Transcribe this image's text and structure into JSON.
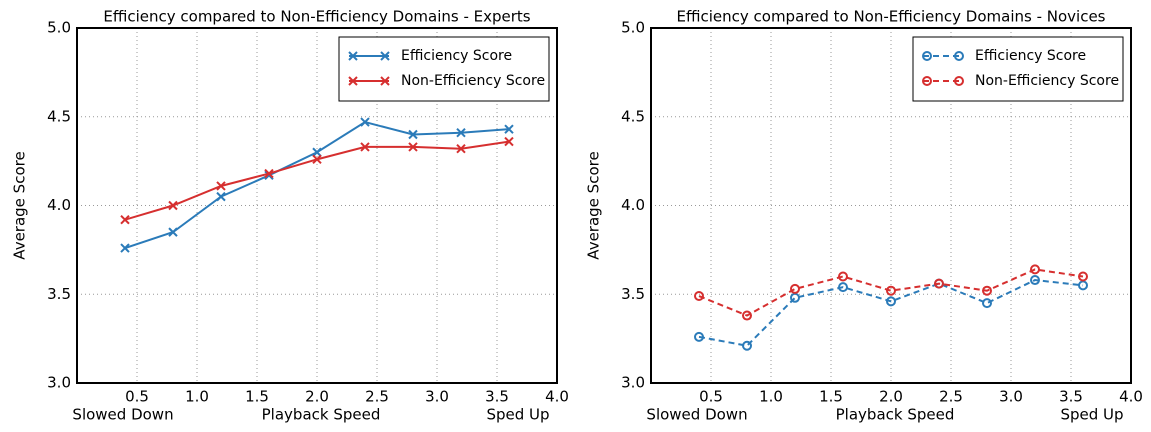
{
  "chart_data": [
    {
      "type": "line",
      "title": "Efficiency compared to Non-Efficiency Domains - Experts",
      "xlabel": "Playback Speed",
      "xlabel_left": "Slowed Down",
      "xlabel_right": "Sped Up",
      "ylabel": "Average Score",
      "x": [
        0.4,
        0.8,
        1.2,
        1.6,
        2.0,
        2.4,
        2.8,
        3.2,
        3.6
      ],
      "series": [
        {
          "name": "Efficiency Score",
          "color": "#2b7bb9",
          "marker": "x",
          "linestyle": "solid",
          "values": [
            3.76,
            3.85,
            4.05,
            4.17,
            4.3,
            4.47,
            4.4,
            4.41,
            4.43
          ]
        },
        {
          "name": "Non-Efficiency Score",
          "color": "#d62f2f",
          "marker": "x",
          "linestyle": "solid",
          "values": [
            3.92,
            4.0,
            4.11,
            4.18,
            4.26,
            4.33,
            4.33,
            4.32,
            4.36
          ]
        }
      ],
      "xlim": [
        0,
        4
      ],
      "xticks": [
        0.5,
        {
          "value": 1,
          "label": "1.0"
        },
        1.5,
        {
          "value": 2,
          "label": "2.0"
        },
        2.5,
        {
          "value": 3,
          "label": "3.0"
        },
        3.5,
        {
          "value": 4,
          "label": "4.0"
        }
      ],
      "ylim": [
        3,
        5
      ],
      "yticks": [
        {
          "value": 3,
          "label": "3.0"
        },
        3.5,
        {
          "value": 4,
          "label": "4.0"
        },
        4.5,
        {
          "value": 5,
          "label": "5.0"
        }
      ],
      "grid": true,
      "legend": "upper right"
    },
    {
      "type": "line",
      "title": "Efficiency compared to Non-Efficiency Domains - Novices",
      "xlabel": "Playback Speed",
      "xlabel_left": "Slowed Down",
      "xlabel_right": "Sped Up",
      "ylabel": "Average Score",
      "x": [
        0.4,
        0.8,
        1.2,
        1.6,
        2.0,
        2.4,
        2.8,
        3.2,
        3.6
      ],
      "series": [
        {
          "name": "Efficiency Score",
          "color": "#2b7bb9",
          "marker": "o",
          "linestyle": "dashed",
          "values": [
            3.26,
            3.21,
            3.48,
            3.54,
            3.46,
            3.56,
            3.45,
            3.58,
            3.55
          ]
        },
        {
          "name": "Non-Efficiency Score",
          "color": "#d62f2f",
          "marker": "o",
          "linestyle": "dashed",
          "values": [
            3.49,
            3.38,
            3.53,
            3.6,
            3.52,
            3.56,
            3.52,
            3.64,
            3.6
          ]
        }
      ],
      "xlim": [
        0,
        4
      ],
      "xticks": [
        0.5,
        {
          "value": 1,
          "label": "1.0"
        },
        1.5,
        {
          "value": 2,
          "label": "2.0"
        },
        2.5,
        {
          "value": 3,
          "label": "3.0"
        },
        3.5,
        {
          "value": 4,
          "label": "4.0"
        }
      ],
      "ylim": [
        3,
        5
      ],
      "yticks": [
        {
          "value": 3,
          "label": "3.0"
        },
        3.5,
        {
          "value": 4,
          "label": "4.0"
        },
        4.5,
        {
          "value": 5,
          "label": "5.0"
        }
      ],
      "grid": true,
      "legend": "upper right"
    }
  ]
}
